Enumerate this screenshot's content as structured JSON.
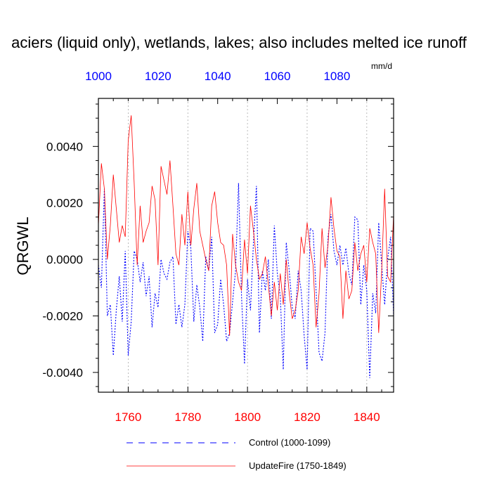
{
  "chart_data": {
    "type": "line",
    "title": "aciers (liquid only), wetlands, lakes; also includes melted ice runoff",
    "ylabel": "QRGWL",
    "units": "mm/d",
    "ylim": [
      -0.0047,
      0.0057
    ],
    "yticks": [
      "0.0040",
      "0.0020",
      "0.0000",
      "-0.0020",
      "-0.0040"
    ],
    "ytick_values": [
      0.004,
      0.002,
      0.0,
      -0.002,
      -0.004
    ],
    "x_bottom": {
      "label": "",
      "lim": [
        1750,
        1849
      ],
      "ticks": [
        1760,
        1780,
        1800,
        1820,
        1840
      ],
      "color": "#ff0000"
    },
    "x_top": {
      "label": "",
      "lim": [
        1000,
        1099
      ],
      "ticks": [
        1000,
        1020,
        1040,
        1060,
        1080
      ],
      "color": "#0000ff"
    },
    "grid": "vertical dotted at bottom-axis major ticks",
    "legend_position": "bottom",
    "series": [
      {
        "name": "Control (1000-1099)",
        "axis": "top",
        "style": "dashed",
        "color": "#0000ff",
        "x": [
          1000,
          1001,
          1002,
          1003,
          1004,
          1005,
          1006,
          1007,
          1008,
          1009,
          1010,
          1011,
          1012,
          1013,
          1014,
          1015,
          1016,
          1017,
          1018,
          1019,
          1020,
          1021,
          1022,
          1023,
          1024,
          1025,
          1026,
          1027,
          1028,
          1029,
          1030,
          1031,
          1032,
          1033,
          1034,
          1035,
          1036,
          1037,
          1038,
          1039,
          1040,
          1041,
          1042,
          1043,
          1044,
          1045,
          1046,
          1047,
          1048,
          1049,
          1050,
          1051,
          1052,
          1053,
          1054,
          1055,
          1056,
          1057,
          1058,
          1059,
          1060,
          1061,
          1062,
          1063,
          1064,
          1065,
          1066,
          1067,
          1068,
          1069,
          1070,
          1071,
          1072,
          1073,
          1074,
          1075,
          1076,
          1077,
          1078,
          1079,
          1080,
          1081,
          1082,
          1083,
          1084,
          1085,
          1086,
          1087,
          1088,
          1089,
          1090,
          1091,
          1092,
          1093,
          1094,
          1095,
          1096,
          1097,
          1098,
          1099
        ],
        "y": [
          -0.0002,
          -0.001,
          0.0025,
          -0.002,
          -0.0016,
          -0.0034,
          -0.0018,
          -0.0006,
          -0.0022,
          0.0003,
          -0.0034,
          -0.0022,
          0.0003,
          0.0,
          -0.0008,
          -0.0001,
          -0.0013,
          -0.0006,
          -0.0024,
          -0.0012,
          -0.0017,
          0.0,
          -0.0005,
          -0.0007,
          -0.0001,
          0.0001,
          -0.0023,
          -0.0016,
          -0.0024,
          -0.0016,
          0.001,
          0.0004,
          -0.0022,
          -0.0009,
          -0.0017,
          -0.0029,
          0.0001,
          -0.0004,
          0.0008,
          -0.0026,
          -0.0023,
          -0.0007,
          -0.0016,
          -0.0029,
          -0.0026,
          -0.0015,
          -0.0004,
          0.0027,
          -0.0013,
          -0.0037,
          -0.0007,
          -0.0018,
          0.0006,
          0.0026,
          -0.0026,
          -0.0004,
          -0.0011,
          0.0,
          -0.0021,
          0.0012,
          -0.0005,
          -0.0013,
          -0.0039,
          0.0006,
          -0.0004,
          -0.0017,
          -0.0021,
          -0.0004,
          -0.0011,
          -0.0027,
          -0.0039,
          0.0011,
          0.001,
          -0.0011,
          -0.0033,
          -0.0036,
          -0.0026,
          0.0008,
          0.0016,
          0.0003,
          -0.0002,
          0.0005,
          -0.0002,
          0.0004,
          -0.0005,
          -0.0009,
          0.0015,
          0.0014,
          -0.0016,
          -0.0002,
          -0.0011,
          -0.0042,
          -0.0012,
          -0.0019,
          0.0013,
          -0.0002,
          -0.0016,
          0.0,
          0.0008,
          -0.002
        ]
      },
      {
        "name": "UpdateFire (1750-1849)",
        "axis": "bottom",
        "style": "solid",
        "color": "#ff0000",
        "x": [
          1750,
          1751,
          1752,
          1753,
          1754,
          1755,
          1756,
          1757,
          1758,
          1759,
          1760,
          1761,
          1762,
          1763,
          1764,
          1765,
          1766,
          1767,
          1768,
          1769,
          1770,
          1771,
          1772,
          1773,
          1774,
          1775,
          1776,
          1777,
          1778,
          1779,
          1780,
          1781,
          1782,
          1783,
          1784,
          1785,
          1786,
          1787,
          1788,
          1789,
          1790,
          1791,
          1792,
          1793,
          1794,
          1795,
          1796,
          1797,
          1798,
          1799,
          1800,
          1801,
          1802,
          1803,
          1804,
          1805,
          1806,
          1807,
          1808,
          1809,
          1810,
          1811,
          1812,
          1813,
          1814,
          1815,
          1816,
          1817,
          1818,
          1819,
          1820,
          1821,
          1822,
          1823,
          1824,
          1825,
          1826,
          1827,
          1828,
          1829,
          1830,
          1831,
          1832,
          1833,
          1834,
          1835,
          1836,
          1837,
          1838,
          1839,
          1840,
          1841,
          1842,
          1843,
          1844,
          1845,
          1846,
          1847,
          1848,
          1849
        ],
        "y": [
          0.0012,
          0.0034,
          0.0025,
          0.0,
          0.0012,
          0.003,
          0.0018,
          0.0006,
          0.0012,
          0.0008,
          0.0042,
          0.0051,
          0.0027,
          -0.0002,
          0.0019,
          0.0006,
          0.001,
          0.0013,
          0.0026,
          0.0021,
          -0.0002,
          0.0033,
          0.0028,
          0.0023,
          0.0035,
          0.0019,
          0.0002,
          -0.0002,
          0.0016,
          0.0005,
          0.0024,
          0.0005,
          0.0018,
          0.0027,
          0.001,
          0.0005,
          0.0,
          -0.0004,
          0.0019,
          0.0024,
          0.0013,
          0.0006,
          0.0005,
          -0.0002,
          -0.0027,
          0.0009,
          -0.0002,
          -0.0008,
          -0.0011,
          0.0007,
          -0.0005,
          0.0019,
          0.001,
          0.0,
          -0.0007,
          -0.0005,
          0.0001,
          -0.0009,
          -0.002,
          -0.0008,
          -0.0018,
          -0.0005,
          -0.0016,
          0.0,
          -0.0012,
          -0.0021,
          -0.0018,
          -0.0011,
          0.0008,
          0.0002,
          0.0013,
          0.0004,
          -0.0002,
          -0.0024,
          -0.0012,
          0.0011,
          -0.0003,
          0.0005,
          0.0022,
          0.0011,
          0.0003,
          0.0001,
          -0.0021,
          -0.0004,
          -0.0014,
          -0.0011,
          0.0006,
          -0.0004,
          0.0002,
          0.0005,
          -0.0008,
          0.0011,
          0.0006,
          0.0002,
          -0.0026,
          -0.0004,
          0.0025,
          -0.0006,
          -0.0008,
          0.0016
        ]
      }
    ]
  }
}
